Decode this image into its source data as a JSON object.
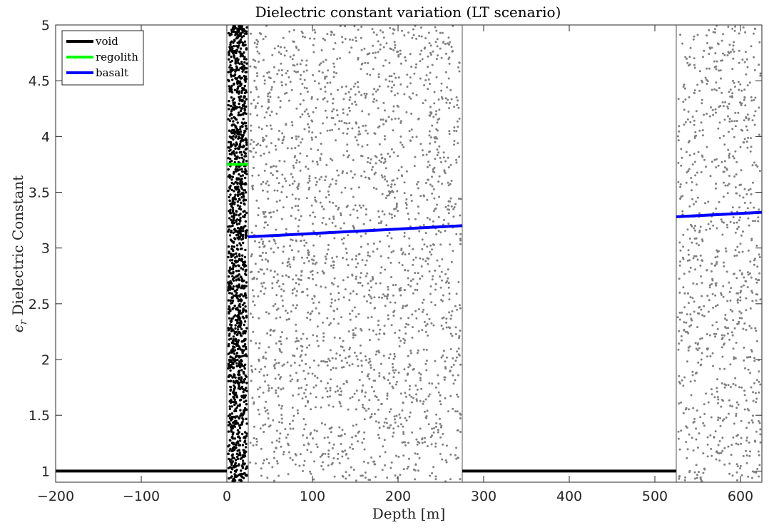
{
  "chart_data": {
    "type": "line",
    "title": "Dielectric constant variation (LT scenario)",
    "xlabel": "Depth [m]",
    "ylabel_symbol": "ϵ",
    "ylabel_subscript": "r",
    "ylabel_text": "Dielectric Constant",
    "xlim": [
      -200,
      625
    ],
    "ylim": [
      0.9,
      5
    ],
    "xticks": [
      -200,
      -100,
      0,
      100,
      200,
      300,
      400,
      500,
      600
    ],
    "xtick_labels": [
      "−200",
      "−100",
      "0",
      "100",
      "200",
      "300",
      "400",
      "500",
      "600"
    ],
    "yticks": [
      1,
      1.5,
      2,
      2.5,
      3,
      3.5,
      4,
      4.5,
      5
    ],
    "ytick_labels": [
      "1",
      "1.5",
      "2",
      "2.5",
      "3",
      "3.5",
      "4",
      "4.5",
      "5"
    ],
    "grid": false,
    "legend_position": "top-left",
    "layer_boundaries": [
      0,
      25,
      275,
      525
    ],
    "series": [
      {
        "name": "void",
        "color": "#000000",
        "segments": [
          [
            [
              -200,
              1
            ],
            [
              0,
              1
            ]
          ],
          [
            [
              275,
              1
            ],
            [
              525,
              1
            ]
          ]
        ]
      },
      {
        "name": "regolith",
        "color": "#00ff00",
        "segments": [
          [
            [
              0,
              3.75
            ],
            [
              25,
              3.75
            ]
          ]
        ]
      },
      {
        "name": "basalt",
        "color": "#0000ff",
        "segments": [
          [
            [
              25,
              3.1
            ],
            [
              275,
              3.2
            ]
          ],
          [
            [
              525,
              3.28
            ],
            [
              625,
              3.32
            ]
          ]
        ]
      }
    ],
    "scatter_regions": [
      {
        "layer": "regolith",
        "x_range": [
          0,
          25
        ],
        "y_range": [
          0.9,
          5
        ],
        "density": "dense",
        "color": "#000000"
      },
      {
        "layer": "basalt",
        "x_range": [
          25,
          275
        ],
        "y_range": [
          0.9,
          5
        ],
        "density": "sparse",
        "color": "#808080"
      },
      {
        "layer": "basalt",
        "x_range": [
          525,
          625
        ],
        "y_range": [
          0.9,
          5
        ],
        "density": "sparse",
        "color": "#808080"
      }
    ]
  }
}
